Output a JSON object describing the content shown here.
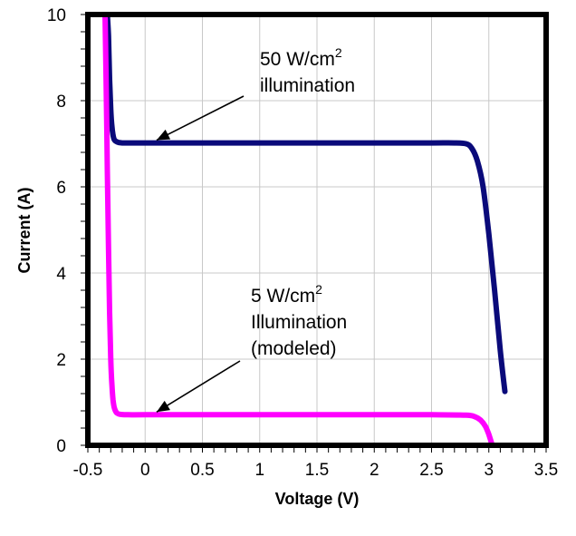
{
  "chart_data": {
    "type": "line",
    "xlabel": "Voltage (V)",
    "ylabel": "Current (A)",
    "xlim": [
      -0.5,
      3.5
    ],
    "ylim": [
      0,
      10
    ],
    "x_ticks": [
      "-0.5",
      "0",
      "0.5",
      "1",
      "1.5",
      "2",
      "2.5",
      "3",
      "3.5"
    ],
    "y_ticks": [
      "0",
      "2",
      "4",
      "6",
      "8",
      "10"
    ],
    "grid": true,
    "legend": "none",
    "series": [
      {
        "color": "#0a0a7a",
        "x": [
          -0.33,
          -0.32,
          -0.31,
          -0.3,
          -0.29,
          -0.28,
          -0.27,
          -0.25,
          -0.2,
          0.0,
          0.5,
          1.0,
          1.5,
          2.0,
          2.5,
          2.7,
          2.8,
          2.85,
          2.9,
          2.95,
          3.0,
          3.05,
          3.1,
          3.14
        ],
        "values": [
          10.0,
          9.5,
          8.5,
          7.8,
          7.4,
          7.2,
          7.1,
          7.05,
          7.02,
          7.02,
          7.02,
          7.02,
          7.02,
          7.02,
          7.02,
          7.02,
          7.0,
          6.9,
          6.6,
          6.0,
          4.9,
          3.6,
          2.2,
          1.25
        ]
      },
      {
        "color": "#ff00ff",
        "x": [
          -0.35,
          -0.34,
          -0.33,
          -0.32,
          -0.31,
          -0.3,
          -0.29,
          -0.28,
          -0.27,
          -0.25,
          -0.22,
          -0.15,
          0.0,
          0.5,
          1.0,
          1.5,
          2.0,
          2.5,
          2.8,
          2.88,
          2.93,
          2.97,
          3.0,
          3.03
        ],
        "values": [
          10.0,
          8.4,
          6.4,
          4.6,
          3.1,
          2.0,
          1.4,
          1.05,
          0.88,
          0.76,
          0.72,
          0.71,
          0.71,
          0.71,
          0.71,
          0.71,
          0.71,
          0.71,
          0.7,
          0.66,
          0.58,
          0.44,
          0.25,
          0.0
        ]
      }
    ],
    "annotations": [
      {
        "lines": [
          "50 W/cm",
          "illumination"
        ],
        "superscript": "2",
        "target": {
          "x": 0.1,
          "y": 7.02
        }
      },
      {
        "lines": [
          "5 W/cm",
          "Illumination",
          "(modeled)"
        ],
        "superscript": "2",
        "target": {
          "x": 0.1,
          "y": 0.71
        }
      }
    ]
  }
}
